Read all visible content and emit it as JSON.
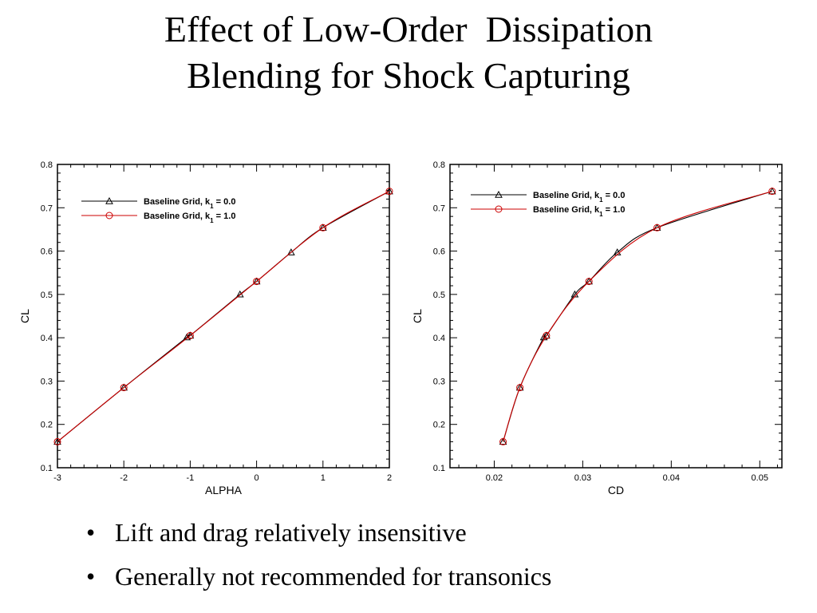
{
  "slide": {
    "title_lines": [
      "Effect of Low-Order  Dissipation",
      "Blending for Shock Capturing"
    ],
    "bullets": [
      "Lift and drag relatively insensitive",
      "Generally not recommended for transonics"
    ]
  },
  "colors": {
    "series_k0": "#000000",
    "series_k1": "#cc0000",
    "axes": "#000000"
  },
  "chart_data": [
    {
      "type": "line",
      "xlabel": "ALPHA",
      "ylabel": "CL",
      "xlim": [
        -3,
        2
      ],
      "ylim": [
        0.1,
        0.8
      ],
      "xticks": [
        -3,
        -2,
        -1,
        0,
        1,
        2
      ],
      "xtick_labels": [
        "-3",
        "-2",
        "-1",
        "0",
        "1",
        "2"
      ],
      "yticks": [
        0.1,
        0.2,
        0.3,
        0.4,
        0.5,
        0.6,
        0.7,
        0.8
      ],
      "ytick_labels": [
        "0.1",
        "0.2",
        "0.3",
        "0.4",
        "0.5",
        "0.6",
        "0.7",
        "0.8"
      ],
      "grid": false,
      "legend_position": "top-left",
      "series": [
        {
          "name": "Baseline Grid, k",
          "subscript": "1",
          "name_suffix": " = 0.0",
          "marker": "triangle",
          "color": "#000000",
          "x": [
            -3,
            -2,
            -1.05,
            -1,
            -0.25,
            0,
            0.52,
            1,
            2
          ],
          "y": [
            0.16,
            0.285,
            0.401,
            0.405,
            0.5,
            0.53,
            0.597,
            0.654,
            0.738
          ]
        },
        {
          "name": "Baseline Grid, k",
          "subscript": "1",
          "name_suffix": " = 1.0",
          "marker": "circle",
          "color": "#cc0000",
          "x": [
            -3,
            -2,
            -1,
            0,
            1,
            2
          ],
          "y": [
            0.16,
            0.285,
            0.405,
            0.53,
            0.654,
            0.738
          ]
        }
      ]
    },
    {
      "type": "line",
      "xlabel": "CD",
      "ylabel": "CL",
      "xlim": [
        0.015,
        0.0525
      ],
      "ylim": [
        0.1,
        0.8
      ],
      "xticks": [
        0.02,
        0.03,
        0.04,
        0.05
      ],
      "xtick_labels": [
        "0.02",
        "0.03",
        "0.04",
        "0.05"
      ],
      "yticks": [
        0.1,
        0.2,
        0.3,
        0.4,
        0.5,
        0.6,
        0.7,
        0.8
      ],
      "ytick_labels": [
        "0.1",
        "0.2",
        "0.3",
        "0.4",
        "0.5",
        "0.6",
        "0.7",
        "0.8"
      ],
      "grid": false,
      "legend_position": "top-left",
      "series": [
        {
          "name": "Baseline Grid, k",
          "subscript": "1",
          "name_suffix": " = 0.0",
          "marker": "triangle",
          "color": "#000000",
          "x": [
            0.021,
            0.0229,
            0.0256,
            0.0259,
            0.0291,
            0.0307,
            0.0339,
            0.0384,
            0.0514
          ],
          "y": [
            0.16,
            0.285,
            0.401,
            0.405,
            0.5,
            0.53,
            0.597,
            0.654,
            0.738
          ]
        },
        {
          "name": "Baseline Grid, k",
          "subscript": "1",
          "name_suffix": " = 1.0",
          "marker": "circle",
          "color": "#cc0000",
          "x": [
            0.021,
            0.0229,
            0.0259,
            0.0307,
            0.0384,
            0.0514
          ],
          "y": [
            0.16,
            0.285,
            0.405,
            0.53,
            0.654,
            0.738
          ]
        }
      ]
    }
  ]
}
